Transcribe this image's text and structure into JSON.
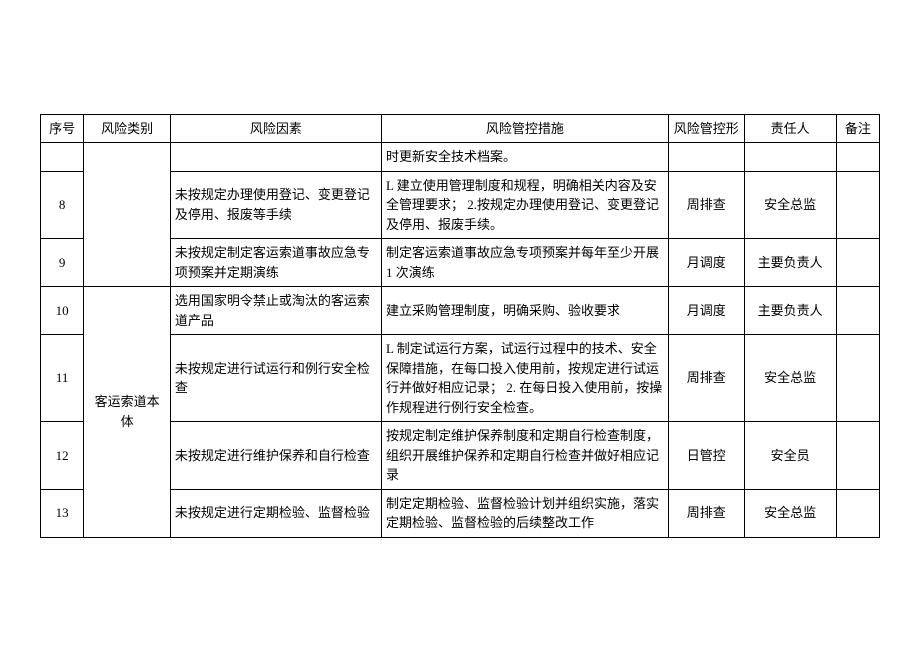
{
  "headers": {
    "seq": "序号",
    "category": "风险类别",
    "factor": "风险因素",
    "measure": "风险管控措施",
    "freq": "风险管控形",
    "resp": "责任人",
    "note": "备注"
  },
  "category_merged": "客运索道本体",
  "rows": [
    {
      "seq": "",
      "factor": "",
      "measure": "时更新安全技术档案。",
      "freq": "",
      "resp": "",
      "note": ""
    },
    {
      "seq": "8",
      "factor": "未按规定办理使用登记、变更登记及停用、报废等手续",
      "measure": "L 建立使用管理制度和规程，明确相关内容及安全管理要求；\n2.按规定办理使用登记、变更登记及停用、报废手续。",
      "freq": "周排查",
      "resp": "安全总监",
      "note": ""
    },
    {
      "seq": "9",
      "factor": "未按规定制定客运索道事故应急专项预案并定期演练",
      "measure": "制定客运索道事故应急专项预案并每年至少开展 1 次演练",
      "freq": "月调度",
      "resp": "主要负责人",
      "note": ""
    },
    {
      "seq": "10",
      "factor": "选用国家明令禁止或淘汰的客运索道产品",
      "measure": "建立采购管理制度，明确采购、验收要求",
      "freq": "月调度",
      "resp": "主要负责人",
      "note": ""
    },
    {
      "seq": "11",
      "factor": "未按规定进行试运行和例行安全检查",
      "measure": "L 制定试运行方案，试运行过程中的技术、安全保障措施，在每口投入使用前，按规定进行试运行并做好相应记录；\n2. 在每日投入使用前，按操作规程进行例行安全检查。",
      "freq": "周排查",
      "resp": "安全总监",
      "note": ""
    },
    {
      "seq": "12",
      "factor": "未按规定进行维护保养和自行检查",
      "measure": "按规定制定维护保养制度和定期自行检查制度，组织开展维护保养和定期自行检查并做好相应记录",
      "freq": "日管控",
      "resp": "安全员",
      "note": ""
    },
    {
      "seq": "13",
      "factor": "未按规定进行定期检验、监督检验",
      "measure": "制定定期检验、监督检验计划并组织实施，落实定期检验、监督检验的后续整改工作",
      "freq": "周排查",
      "resp": "安全总监",
      "note": ""
    }
  ]
}
